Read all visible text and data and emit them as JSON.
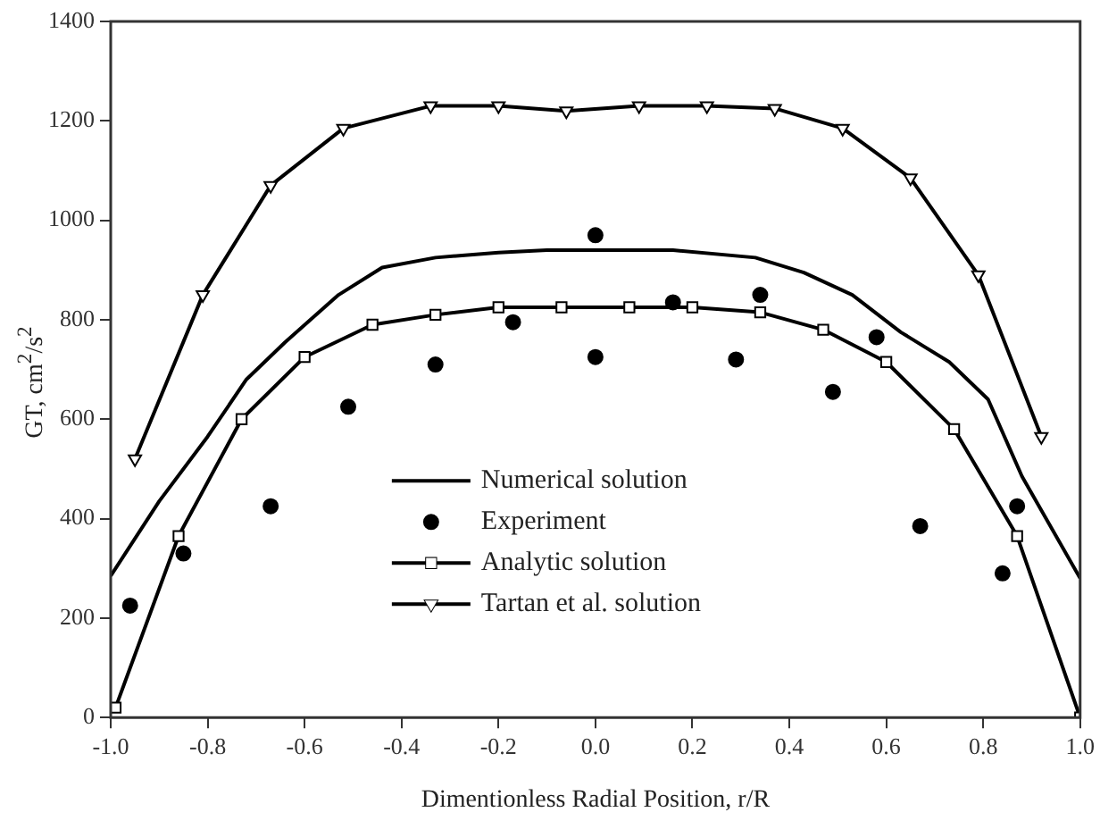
{
  "chart_data": {
    "type": "line",
    "xlabel": "Dimentionless Radial Position, r/R",
    "ylabel": "GT, cm$^{2}$/s$^{2}$",
    "xlim": [
      -1,
      1
    ],
    "ylim": [
      0,
      1400
    ],
    "xticks": [
      {
        "value": -1,
        "label": "-1.0"
      },
      {
        "value": -0.8,
        "label": "-0.8"
      },
      {
        "value": -0.6,
        "label": "-0.6"
      },
      {
        "value": -0.4,
        "label": "-0.4"
      },
      {
        "value": -0.2,
        "label": "-0.2"
      },
      {
        "value": 0,
        "label": "0.0"
      },
      {
        "value": 0.2,
        "label": "0.2"
      },
      {
        "value": 0.4,
        "label": "0.4"
      },
      {
        "value": 0.6,
        "label": "0.6"
      },
      {
        "value": 0.8,
        "label": "0.8"
      },
      {
        "value": 1,
        "label": "1.0"
      }
    ],
    "yticks": [
      0,
      200,
      400,
      600,
      800,
      1000,
      1200,
      1400
    ],
    "legend": "bottom",
    "grid": false,
    "series": [
      {
        "name": "Numerical solution",
        "marker": "none",
        "color": "#000000",
        "x": [
          -1,
          -0.9,
          -0.8,
          -0.72,
          -0.64,
          -0.53,
          -0.44,
          -0.33,
          -0.2,
          -0.1,
          0,
          0.16,
          0.33,
          0.43,
          0.53,
          0.63,
          0.73,
          0.81,
          0.88,
          1
        ],
        "values": [
          285,
          435,
          565,
          680,
          755,
          850,
          905,
          925,
          935,
          940,
          940,
          940,
          925,
          895,
          850,
          775,
          715,
          640,
          485,
          280
        ]
      },
      {
        "name": "Experiment",
        "type": "scatter",
        "marker": "circle",
        "color": "#000000",
        "x": [
          -0.96,
          -0.85,
          -0.67,
          -0.51,
          -0.33,
          -0.17,
          0,
          0,
          0.16,
          0.29,
          0.34,
          0.49,
          0.58,
          0.67,
          0.84,
          0.87
        ],
        "values": [
          225,
          330,
          425,
          625,
          710,
          795,
          970,
          725,
          835,
          720,
          850,
          655,
          765,
          385,
          290,
          425
        ]
      },
      {
        "name": "Analytic solution",
        "marker": "square",
        "color": "#000000",
        "x": [
          -0.99,
          -0.86,
          -0.73,
          -0.6,
          -0.46,
          -0.33,
          -0.2,
          -0.07,
          0.07,
          0.2,
          0.34,
          0.47,
          0.6,
          0.74,
          0.87,
          1
        ],
        "values": [
          20,
          365,
          600,
          725,
          790,
          810,
          825,
          825,
          825,
          825,
          815,
          780,
          715,
          580,
          365,
          0
        ]
      },
      {
        "name": "Tartan et al. solution",
        "marker": "triangle",
        "color": "#000000",
        "x": [
          -0.95,
          -0.81,
          -0.67,
          -0.52,
          -0.34,
          -0.2,
          -0.06,
          0.09,
          0.23,
          0.37,
          0.51,
          0.65,
          0.79,
          0.92
        ],
        "values": [
          520,
          850,
          1070,
          1185,
          1230,
          1230,
          1220,
          1230,
          1230,
          1225,
          1185,
          1085,
          890,
          565
        ]
      }
    ]
  }
}
